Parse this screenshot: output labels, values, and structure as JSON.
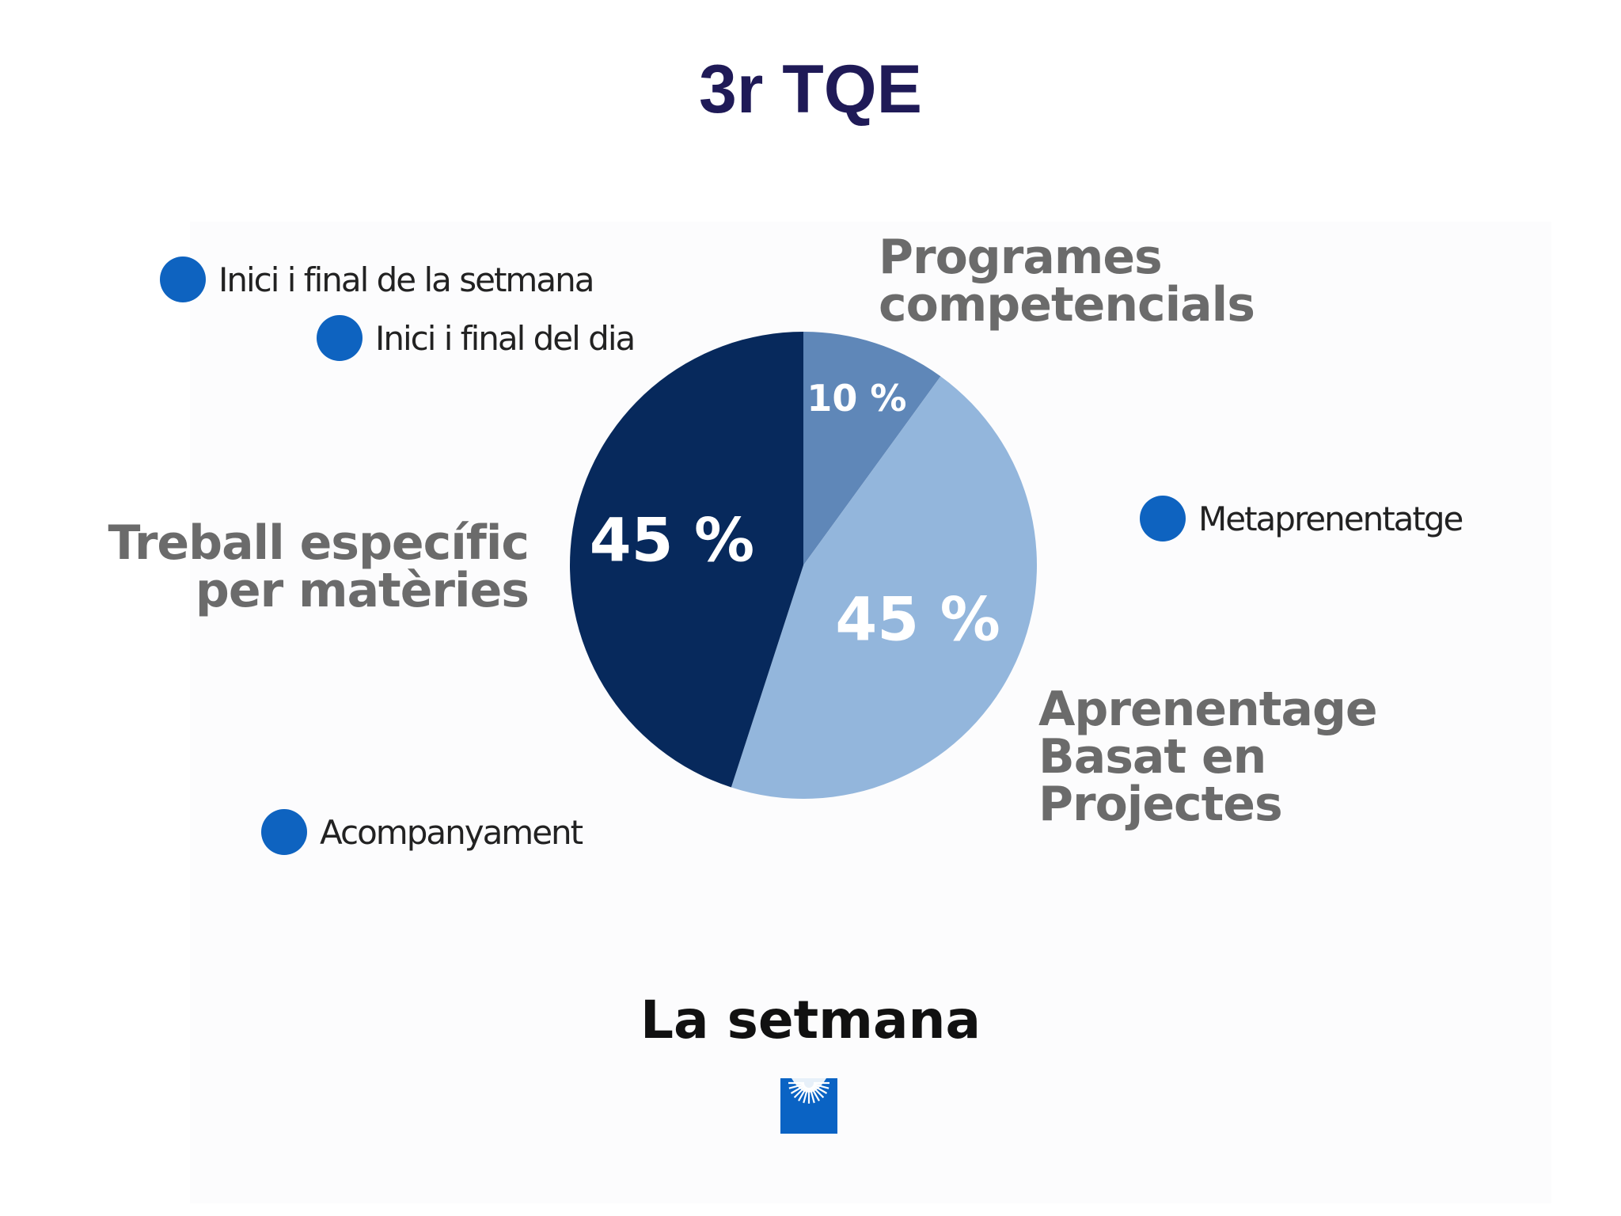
{
  "title": "3r TQE",
  "subtitle": "La setmana",
  "legend": [
    {
      "label": "Inici i final de la setmana",
      "color": "#0e63c0"
    },
    {
      "label": "Inici i final del dia",
      "color": "#0e63c0"
    },
    {
      "label": "Metaprenentatge",
      "color": "#0e63c0"
    },
    {
      "label": "Acompanyament",
      "color": "#0e63c0"
    }
  ],
  "colors": {
    "title": "#1f1a57",
    "slice_programes": "#5f87b8",
    "slice_aprenentatge": "#93b6dc",
    "slice_treball": "#07295c",
    "label_gray": "#6b6b6b",
    "dot_blue": "#0e63c0"
  },
  "logo_icon": "blue-square-sunburst-logo",
  "chart_data": {
    "type": "pie",
    "slices": [
      {
        "name": "Programes competencials",
        "value": 10,
        "label": "10 %",
        "color": "#5f87b8"
      },
      {
        "name": "Aprenentage Basat en Projectes",
        "value": 45,
        "label": "45 %",
        "color": "#93b6dc"
      },
      {
        "name": "Treball específic per matèries",
        "value": 45,
        "label": "45 %",
        "color": "#07295c"
      }
    ],
    "category_labels": [
      {
        "lines": [
          "Programes",
          "competencials"
        ]
      },
      {
        "lines": [
          "Aprenentage",
          "Basat en",
          "Projectes"
        ]
      },
      {
        "lines": [
          "Treball específic",
          "per matèries"
        ]
      }
    ]
  }
}
